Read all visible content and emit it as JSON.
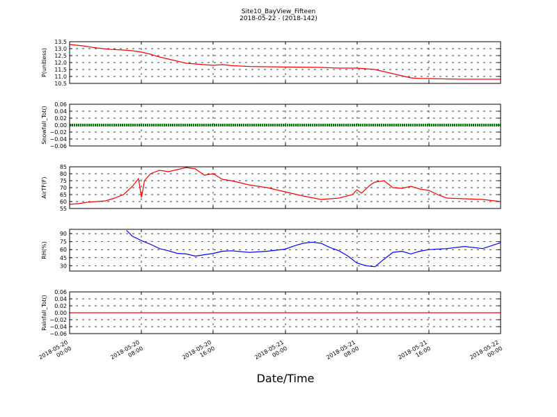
{
  "title": "Site10_BayView_Fifteen",
  "subtitle": "2018-05-22 - (2018-142)",
  "xlabel": "Date/Time",
  "colors": {
    "red": "#ff0000",
    "green": "#008000",
    "blue": "#0000ff"
  },
  "chart_data": [
    {
      "type": "line",
      "ylabel": "P(unitless)",
      "ylim": [
        10.5,
        13.5
      ],
      "yticks": [
        "10.5",
        "11.0",
        "11.5",
        "12.0",
        "12.5",
        "13.0",
        "13.5"
      ],
      "xlim": [
        "2018-05-20 00:00",
        "2018-05-22 00:00"
      ],
      "xtick_labels": [
        "2018-05-20 00:00",
        "2018-05-20 08:00",
        "2018-05-20 16:00",
        "2018-05-21 00:00",
        "2018-05-21 08:00",
        "2018-05-21 16:00",
        "2018-05-22 00:00"
      ],
      "grid": true,
      "series": [
        {
          "color": "#ff0000",
          "x": [
            "2018-05-20 00:00",
            "2018-05-20 01:30",
            "2018-05-20 03:00",
            "2018-05-20 04:30",
            "2018-05-20 06:00",
            "2018-05-20 07:00",
            "2018-05-20 08:00",
            "2018-05-20 09:00",
            "2018-05-20 10:00",
            "2018-05-20 11:00",
            "2018-05-20 12:00",
            "2018-05-20 13:00",
            "2018-05-20 14:00",
            "2018-05-20 16:00",
            "2018-05-20 17:00",
            "2018-05-20 18:00",
            "2018-05-20 20:00",
            "2018-05-20 22:00",
            "2018-05-21 00:00",
            "2018-05-21 04:00",
            "2018-05-21 06:00",
            "2018-05-21 08:00",
            "2018-05-21 09:00",
            "2018-05-21 10:00",
            "2018-05-21 11:00",
            "2018-05-21 12:00",
            "2018-05-21 13:00",
            "2018-05-21 14:00",
            "2018-05-21 15:00",
            "2018-05-21 16:00",
            "2018-05-21 18:00",
            "2018-05-21 20:00",
            "2018-05-21 22:00",
            "2018-05-22 00:00"
          ],
          "y": [
            13.3,
            13.2,
            13.05,
            12.95,
            12.9,
            12.85,
            12.75,
            12.6,
            12.4,
            12.25,
            12.1,
            11.95,
            11.9,
            11.8,
            11.85,
            11.78,
            11.72,
            11.7,
            11.68,
            11.65,
            11.6,
            11.6,
            11.55,
            11.5,
            11.35,
            11.2,
            11.05,
            10.9,
            10.85,
            10.85,
            10.82,
            10.8,
            10.8,
            10.8
          ]
        }
      ]
    },
    {
      "type": "line",
      "ylabel": "Snowfall_Tot()",
      "ylim": [
        -0.06,
        0.06
      ],
      "yticks": [
        "−0.06",
        "−0.04",
        "−0.02",
        "0.00",
        "0.02",
        "0.04",
        "0.06"
      ],
      "xlim": [
        "2018-05-20 00:00",
        "2018-05-22 00:00"
      ],
      "grid": true,
      "series": [
        {
          "color": "#008000",
          "thick": true,
          "x": [
            "2018-05-20 00:00",
            "2018-05-22 00:00"
          ],
          "y": [
            0.0,
            0.0
          ]
        }
      ]
    },
    {
      "type": "line",
      "ylabel": "AirTF(F)",
      "ylim": [
        55,
        85
      ],
      "yticks": [
        "55",
        "60",
        "65",
        "70",
        "75",
        "80",
        "85"
      ],
      "xlim": [
        "2018-05-20 00:00",
        "2018-05-22 00:00"
      ],
      "grid": true,
      "series": [
        {
          "color": "#ff0000",
          "x": [
            "2018-05-20 00:00",
            "2018-05-20 01:00",
            "2018-05-20 02:00",
            "2018-05-20 04:00",
            "2018-05-20 05:00",
            "2018-05-20 06:00",
            "2018-05-20 07:00",
            "2018-05-20 07:40",
            "2018-05-20 08:00",
            "2018-05-20 08:20",
            "2018-05-20 09:00",
            "2018-05-20 10:00",
            "2018-05-20 11:00",
            "2018-05-20 12:00",
            "2018-05-20 13:00",
            "2018-05-20 14:00",
            "2018-05-20 15:00",
            "2018-05-20 16:00",
            "2018-05-20 17:00",
            "2018-05-20 18:00",
            "2018-05-20 20:00",
            "2018-05-20 22:00",
            "2018-05-21 00:00",
            "2018-05-21 02:00",
            "2018-05-21 04:00",
            "2018-05-21 06:00",
            "2018-05-21 07:30",
            "2018-05-21 08:00",
            "2018-05-21 08:30",
            "2018-05-21 09:30",
            "2018-05-21 10:00",
            "2018-05-21 11:00",
            "2018-05-21 12:00",
            "2018-05-21 13:00",
            "2018-05-21 14:00",
            "2018-05-21 15:00",
            "2018-05-21 16:00",
            "2018-05-21 17:00",
            "2018-05-21 18:00",
            "2018-05-21 20:00",
            "2018-05-21 22:00",
            "2018-05-22 00:00"
          ],
          "y": [
            58,
            58.5,
            59.5,
            60.5,
            62.5,
            65,
            71,
            76.5,
            63,
            75,
            80,
            82.5,
            81.5,
            83,
            84.5,
            83.5,
            79,
            80,
            76,
            75,
            72,
            70,
            67,
            64,
            61.5,
            62.5,
            65,
            68.5,
            66,
            72,
            74,
            75,
            70,
            69.5,
            71,
            69,
            68,
            65,
            62.5,
            62,
            61.5,
            60
          ]
        }
      ]
    },
    {
      "type": "line",
      "ylabel": "RH(%)",
      "ylim": [
        20,
        98
      ],
      "yticks": [
        "30",
        "45",
        "60",
        "75",
        "90"
      ],
      "xlim": [
        "2018-05-20 00:00",
        "2018-05-22 00:00"
      ],
      "grid": true,
      "series": [
        {
          "color": "#0000ff",
          "x": [
            "2018-05-20 06:20",
            "2018-05-20 07:00",
            "2018-05-20 08:00",
            "2018-05-20 09:00",
            "2018-05-20 10:00",
            "2018-05-20 11:00",
            "2018-05-20 12:00",
            "2018-05-20 13:00",
            "2018-05-20 14:00",
            "2018-05-20 16:00",
            "2018-05-20 17:00",
            "2018-05-20 18:00",
            "2018-05-20 20:00",
            "2018-05-20 22:00",
            "2018-05-21 00:00",
            "2018-05-21 01:00",
            "2018-05-21 02:00",
            "2018-05-21 03:00",
            "2018-05-21 04:00",
            "2018-05-21 05:00",
            "2018-05-21 06:00",
            "2018-05-21 07:00",
            "2018-05-21 08:00",
            "2018-05-21 09:00",
            "2018-05-21 10:00",
            "2018-05-21 11:00",
            "2018-05-21 12:00",
            "2018-05-21 13:00",
            "2018-05-21 14:00",
            "2018-05-21 15:00",
            "2018-05-21 16:00",
            "2018-05-21 18:00",
            "2018-05-21 20:00",
            "2018-05-21 22:00",
            "2018-05-22 00:00"
          ],
          "y": [
            96,
            85,
            77,
            70,
            62,
            58,
            53,
            52,
            48,
            53,
            57,
            58,
            55,
            57,
            61,
            67,
            72,
            74,
            72,
            64,
            58,
            48,
            35,
            30,
            28,
            42,
            55,
            57,
            52,
            57,
            60,
            62,
            66,
            62,
            73
          ]
        }
      ]
    },
    {
      "type": "line",
      "ylabel": "Rainfall_Tot()",
      "ylim": [
        -0.06,
        0.06
      ],
      "yticks": [
        "−0.06",
        "−0.04",
        "−0.02",
        "0.00",
        "0.02",
        "0.04",
        "0.06"
      ],
      "xlim": [
        "2018-05-20 00:00",
        "2018-05-22 00:00"
      ],
      "grid": true,
      "series": [
        {
          "color": "#ff0000",
          "x": [
            "2018-05-20 00:00",
            "2018-05-22 00:00"
          ],
          "y": [
            0.0,
            0.0
          ]
        }
      ]
    }
  ]
}
